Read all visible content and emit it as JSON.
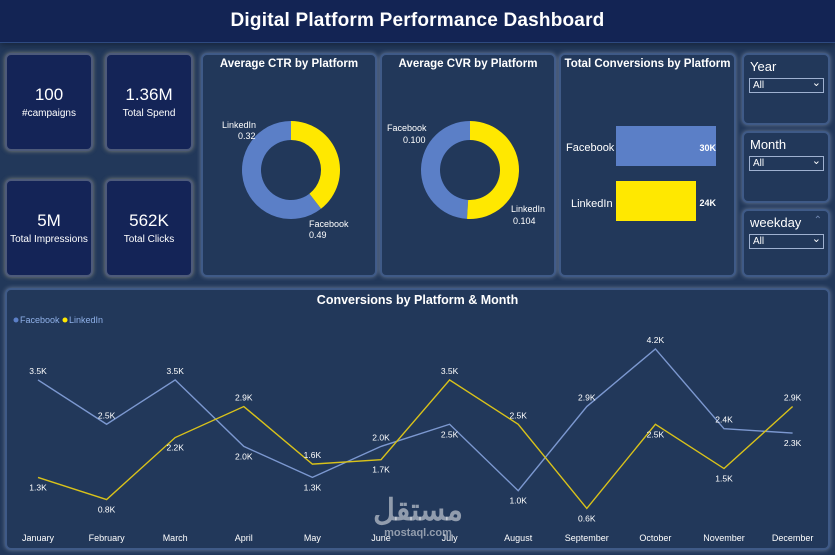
{
  "header": {
    "title": "Digital Platform Performance Dashboard"
  },
  "kpis": {
    "campaigns": {
      "value": "100",
      "label": "#campaigns"
    },
    "spend": {
      "value": "1.36M",
      "label": "Total Spend"
    },
    "impressions": {
      "value": "5M",
      "label": "Total Impressions"
    },
    "clicks": {
      "value": "562K",
      "label": "Total Clicks"
    }
  },
  "colors": {
    "facebook": "#5b7fc7",
    "linkedin": "#ffe800",
    "background": "#22385a",
    "header": "#132454"
  },
  "ctr": {
    "title": "Average CTR by Platform",
    "linkedin_label": "LinkedIn",
    "linkedin_value": "0.32",
    "facebook_label": "Facebook",
    "facebook_value": "0.49"
  },
  "cvr": {
    "title": "Average CVR by Platform",
    "facebook_label": "Facebook",
    "facebook_value": "0.100",
    "linkedin_label": "LinkedIn",
    "linkedin_value": "0.104"
  },
  "conversions": {
    "title": "Total Conversions by Platform",
    "facebook_label": "Facebook",
    "facebook_value": "30K",
    "linkedin_label": "LinkedIn",
    "linkedin_value": "24K"
  },
  "slicers": {
    "year": {
      "label": "Year",
      "value": "All"
    },
    "month": {
      "label": "Month",
      "value": "All"
    },
    "weekday": {
      "label": "weekday",
      "value": "All"
    }
  },
  "line_chart": {
    "title": "Conversions by Platform & Month",
    "legend_facebook": "Facebook",
    "legend_linkedin": "LinkedIn"
  },
  "watermark": {
    "arabic": "مستقل",
    "latin": "mostaql.com"
  },
  "chart_data": [
    {
      "type": "pie",
      "title": "Average CTR by Platform",
      "categories": [
        "LinkedIn",
        "Facebook"
      ],
      "values": [
        0.32,
        0.49
      ]
    },
    {
      "type": "pie",
      "title": "Average CVR by Platform",
      "categories": [
        "Facebook",
        "LinkedIn"
      ],
      "values": [
        0.1,
        0.104
      ]
    },
    {
      "type": "bar",
      "title": "Total Conversions by Platform",
      "categories": [
        "Facebook",
        "LinkedIn"
      ],
      "values": [
        30000,
        24000
      ],
      "labels": [
        "30K",
        "24K"
      ]
    },
    {
      "type": "line",
      "title": "Conversions by Platform & Month",
      "categories": [
        "January",
        "February",
        "March",
        "April",
        "May",
        "June",
        "July",
        "August",
        "September",
        "October",
        "November",
        "December"
      ],
      "legend_position": "top-left",
      "series": [
        {
          "name": "Facebook",
          "values": [
            3500,
            2500,
            3500,
            2000,
            1300,
            2000,
            2500,
            1000,
            2900,
            4200,
            2400,
            2300
          ],
          "labels": [
            "3.5K",
            "2.5K",
            "3.5K",
            "2.0K",
            "1.3K",
            "2.0K",
            "2.5K",
            "1.0K",
            "2.9K",
            "4.2K",
            "2.4K",
            "2.3K"
          ]
        },
        {
          "name": "LinkedIn",
          "values": [
            1300,
            800,
            2200,
            2900,
            1600,
            1700,
            3500,
            2500,
            600,
            2500,
            1500,
            2900
          ],
          "labels": [
            "1.3K",
            "0.8K",
            "2.2K",
            "2.9K",
            "1.6K",
            "1.7K",
            "3.5K",
            "2.5K",
            "0.6K",
            "2.5K",
            "1.5K",
            "2.9K"
          ]
        }
      ]
    }
  ]
}
